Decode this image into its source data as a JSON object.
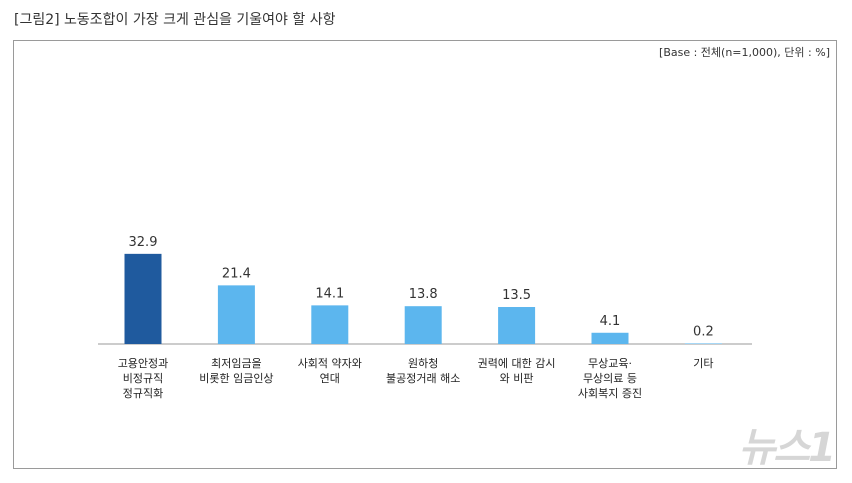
{
  "title": "[그림2] 노동조합이 가장 크게 관심을 기울여야 할 사항",
  "base_note": "[Base : 전체(n=1,000), 단위 : %]",
  "watermark": "뉴스1",
  "chart_data": {
    "type": "bar",
    "categories": [
      "고용안정과\n비정규직\n정규직화",
      "최저임금을\n비롯한 임금인상",
      "사회적 약자와\n연대",
      "원하청\n불공정거래 해소",
      "권력에 대한 감시\n와 비판",
      "무상교육·\n무상의료 등\n사회복지 증진",
      "기타"
    ],
    "values": [
      32.9,
      21.4,
      14.1,
      13.8,
      13.5,
      4.1,
      0.2
    ],
    "value_labels": [
      "32.9",
      "21.4",
      "14.1",
      "13.8",
      "13.5",
      "4.1",
      "0.2"
    ],
    "colors": {
      "highlight": "#1f5a9e",
      "default": "#5cb6ee"
    },
    "ylim": [
      0,
      40
    ],
    "grid": false
  }
}
